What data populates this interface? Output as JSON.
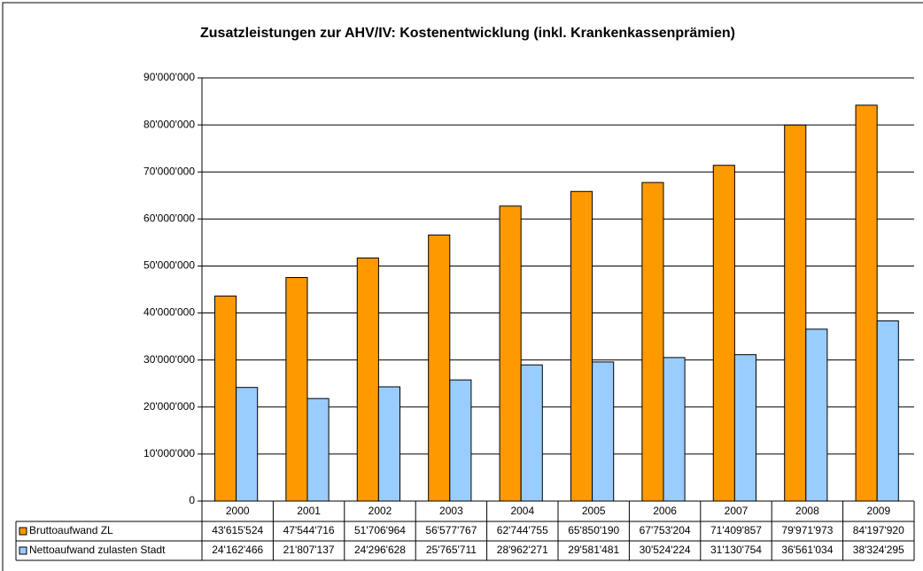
{
  "chart_data": {
    "type": "bar",
    "title": "Zusatzleistungen zur AHV/IV: Kostenentwicklung (inkl. Krankenkassenprämien)",
    "categories": [
      "2000",
      "2001",
      "2002",
      "2003",
      "2004",
      "2005",
      "2006",
      "2007",
      "2008",
      "2009"
    ],
    "series": [
      {
        "name": "Bruttoaufwand ZL",
        "color": "#ff9900",
        "values": [
          43615524,
          47544716,
          51706964,
          56577767,
          62744755,
          65850190,
          67753204,
          71409857,
          79971973,
          84197920
        ],
        "value_labels": [
          "43'615'524",
          "47'544'716",
          "51'706'964",
          "56'577'767",
          "62'744'755",
          "65'850'190",
          "67'753'204",
          "71'409'857",
          "79'971'973",
          "84'197'920"
        ]
      },
      {
        "name": "Nettoaufwand zulasten Stadt",
        "color": "#99ccff",
        "values": [
          24162466,
          21807137,
          24296628,
          25765711,
          28962271,
          29581481,
          30524224,
          31130754,
          36561034,
          38324295
        ],
        "value_labels": [
          "24'162'466",
          "21'807'137",
          "24'296'628",
          "25'765'711",
          "28'962'271",
          "29'581'481",
          "30'524'224",
          "31'130'754",
          "36'561'034",
          "38'324'295"
        ]
      }
    ],
    "ylim": [
      0,
      90000000
    ],
    "yticks": [
      0,
      {
        "value": 10000000,
        "label": "10'000'000"
      },
      {
        "value": 20000000,
        "label": "20'000'000"
      },
      {
        "value": 30000000,
        "label": "30'000'000"
      },
      {
        "value": 40000000,
        "label": "40'000'000"
      },
      {
        "value": 50000000,
        "label": "50'000'000"
      },
      {
        "value": 60000000,
        "label": "60'000'000"
      },
      {
        "value": 70000000,
        "label": "70'000'000"
      },
      {
        "value": 80000000,
        "label": "80'000'000"
      },
      {
        "value": 90000000,
        "label": "90'000'000"
      }
    ],
    "grid": true
  }
}
